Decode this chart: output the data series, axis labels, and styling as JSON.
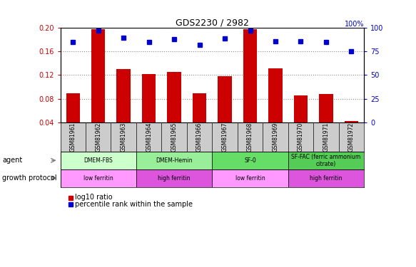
{
  "title": "GDS2230 / 2982",
  "samples": [
    "GSM81961",
    "GSM81962",
    "GSM81963",
    "GSM81964",
    "GSM81965",
    "GSM81966",
    "GSM81967",
    "GSM81968",
    "GSM81969",
    "GSM81970",
    "GSM81971",
    "GSM81972"
  ],
  "log10_ratio": [
    0.089,
    0.198,
    0.13,
    0.122,
    0.125,
    0.089,
    0.118,
    0.198,
    0.132,
    0.085,
    0.088,
    0.042
  ],
  "percentile_rank": [
    85,
    97,
    90,
    85,
    88,
    82,
    89,
    97,
    86,
    86,
    85,
    75
  ],
  "ylim_left": [
    0.04,
    0.2
  ],
  "ylim_right": [
    0,
    100
  ],
  "yticks_left": [
    0.04,
    0.08,
    0.12,
    0.16,
    0.2
  ],
  "yticks_right": [
    0,
    25,
    50,
    75,
    100
  ],
  "bar_color": "#cc0000",
  "dot_color": "#0000cc",
  "agent_groups": [
    {
      "label": "DMEM-FBS",
      "start": 0,
      "end": 3,
      "color": "#ccffcc"
    },
    {
      "label": "DMEM-Hemin",
      "start": 3,
      "end": 6,
      "color": "#99ee99"
    },
    {
      "label": "SF-0",
      "start": 6,
      "end": 9,
      "color": "#66dd66"
    },
    {
      "label": "SF-FAC (ferric ammonium\ncitrate)",
      "start": 9,
      "end": 12,
      "color": "#55cc55"
    }
  ],
  "protocol_groups": [
    {
      "label": "low ferritin",
      "start": 0,
      "end": 3,
      "color": "#ff99ff"
    },
    {
      "label": "high ferritin",
      "start": 3,
      "end": 6,
      "color": "#dd55dd"
    },
    {
      "label": "low ferritin",
      "start": 6,
      "end": 9,
      "color": "#ff99ff"
    },
    {
      "label": "high ferritin",
      "start": 9,
      "end": 12,
      "color": "#dd55dd"
    }
  ],
  "legend_bar_label": "log10 ratio",
  "legend_dot_label": "percentile rank within the sample",
  "xlabel_agent": "agent",
  "xlabel_protocol": "growth protocol",
  "grid_color": "#888888",
  "tick_color_left": "#cc0000",
  "tick_color_right": "#0000cc",
  "bg_color": "#ffffff",
  "sample_bg_color": "#cccccc",
  "title_color": "#000000"
}
